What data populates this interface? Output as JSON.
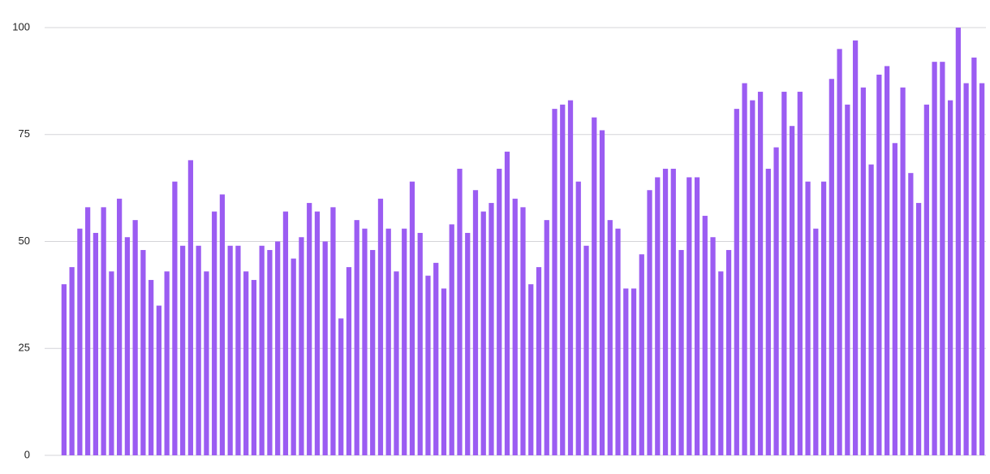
{
  "chart_data": {
    "type": "bar",
    "categories": [
      null,
      null,
      null,
      null,
      null,
      null,
      null,
      null,
      null,
      null,
      null,
      null,
      null,
      null,
      null,
      null,
      null,
      null,
      null,
      null,
      null,
      null,
      null,
      null,
      null,
      null,
      null,
      null,
      null,
      null,
      null,
      null,
      null,
      null,
      null,
      null,
      null,
      null,
      null,
      null,
      null,
      null,
      null,
      null,
      null,
      null,
      null,
      null,
      null,
      null,
      null,
      null,
      null,
      null,
      null,
      null,
      null,
      null,
      null,
      null,
      null,
      null,
      null,
      null,
      null,
      null,
      null,
      null,
      null,
      null,
      null,
      null,
      null,
      null,
      null,
      null,
      null,
      null,
      null,
      null,
      null,
      null,
      null,
      null,
      null,
      null,
      null,
      null,
      null,
      null,
      null,
      null,
      null,
      null,
      null,
      null,
      null,
      null,
      null,
      null,
      null,
      null,
      null,
      null,
      null,
      null,
      null,
      null,
      null,
      null,
      null,
      null,
      null,
      null,
      null,
      null,
      null
    ],
    "values": [
      40,
      44,
      53,
      58,
      52,
      58,
      43,
      60,
      51,
      55,
      48,
      41,
      35,
      43,
      64,
      49,
      69,
      49,
      43,
      57,
      61,
      49,
      49,
      43,
      41,
      49,
      48,
      50,
      57,
      46,
      51,
      59,
      57,
      50,
      58,
      32,
      44,
      55,
      53,
      48,
      60,
      53,
      43,
      53,
      64,
      52,
      42,
      45,
      39,
      54,
      67,
      52,
      62,
      57,
      59,
      67,
      71,
      60,
      58,
      40,
      44,
      55,
      81,
      82,
      83,
      64,
      49,
      79,
      76,
      55,
      53,
      39,
      39,
      47,
      62,
      65,
      67,
      67,
      48,
      65,
      65,
      56,
      51,
      43,
      48,
      81,
      87,
      83,
      85,
      67,
      72,
      85,
      77,
      85,
      64,
      53,
      64,
      88,
      95,
      82,
      97,
      86,
      68,
      89,
      91,
      73,
      86,
      66,
      59,
      82,
      92,
      92,
      83,
      100,
      87,
      93,
      87
    ],
    "color": "#9b5cf2",
    "ylim": [
      0,
      100
    ],
    "yticks": [
      0,
      25,
      50,
      75,
      100
    ],
    "grid": true
  }
}
